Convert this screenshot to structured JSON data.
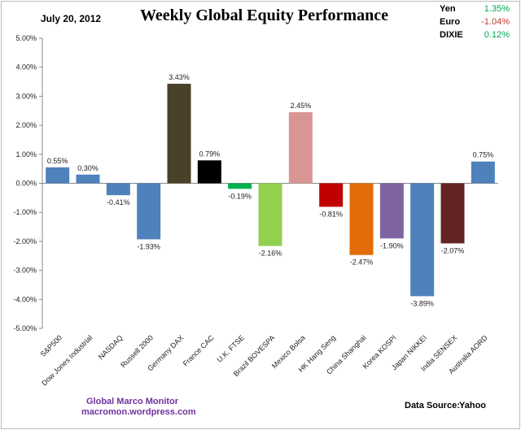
{
  "chart_data": {
    "type": "bar",
    "title": "Weekly Global Equity Performance",
    "date": "July 20, 2012",
    "categories": [
      "S&P500",
      "Dow Jones Industrial",
      "NASDAQ",
      "Russell 2000",
      "Germany DAX",
      "France CAC",
      "U.K. FTSE",
      "Brazil BOVESPA",
      "Mexico Bolsa",
      "HK Hang Seng",
      "China Shanghai",
      "Korea KOSPI",
      "Japan NIKKEI",
      "India SENSEX",
      "Australia AORD"
    ],
    "values": [
      0.55,
      0.3,
      -0.41,
      -1.93,
      3.43,
      0.79,
      -0.19,
      -2.16,
      2.45,
      -0.81,
      -2.47,
      -1.9,
      -3.89,
      -2.07,
      0.75
    ],
    "data_labels": [
      "0.55%",
      "0.30%",
      "-0.41%",
      "-1.93%",
      "3.43%",
      "0.79%",
      "-0.19%",
      "-2.16%",
      "2.45%",
      "-0.81%",
      "-2.47%",
      "-1.90%",
      "-3.89%",
      "-2.07%",
      "0.75%"
    ],
    "colors": [
      "#4f81bd",
      "#4f81bd",
      "#4f81bd",
      "#4f81bd",
      "#4a412a",
      "#000000",
      "#00b050",
      "#92d050",
      "#d99594",
      "#c00000",
      "#e36c09",
      "#8064a2",
      "#4f81bd",
      "#632423",
      "#4f81bd"
    ],
    "ylim": [
      -5,
      5
    ],
    "yticks": [
      "5.00%",
      "4.00%",
      "3.00%",
      "2.00%",
      "1.00%",
      "0.00%",
      "-1.00%",
      "-2.00%",
      "-3.00%",
      "-4.00%",
      "-5.00%"
    ],
    "grid": false
  },
  "currencies": [
    {
      "name": "Yen",
      "value": "1.35%",
      "color": "#00a651"
    },
    {
      "name": "Euro",
      "value": "-1.04%",
      "color": "#c0392b"
    },
    {
      "name": "DIXIE",
      "value": "0.12%",
      "color": "#00a651"
    }
  ],
  "footer": {
    "brand": "Global Marco Monitor",
    "site": "macromon.wordpress.com",
    "source_label": "Data Source:",
    "source": "Yahoo"
  }
}
